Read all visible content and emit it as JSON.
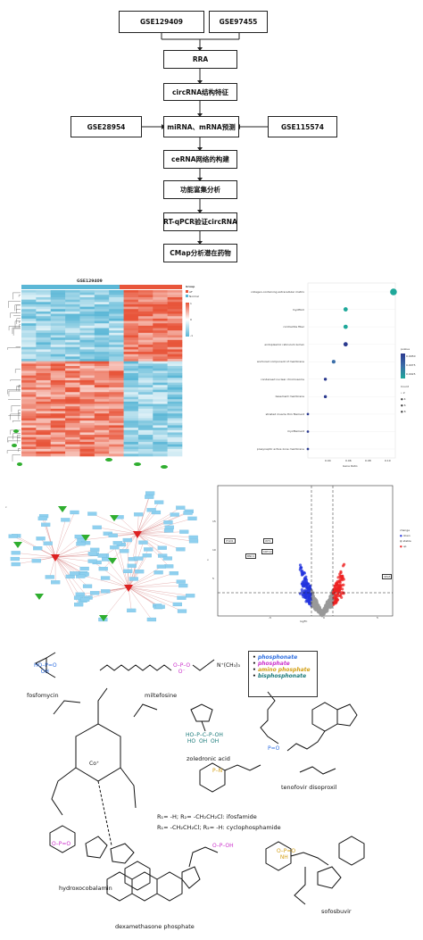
{
  "flowchart": {
    "top_left": "GSE129409",
    "top_right": "GSE97455",
    "rra": "RRA",
    "circ_features": "circRNA结构特征",
    "left_input": "GSE28954",
    "mirna_pred": "miRNA、mRNA预测",
    "right_input": "GSE115574",
    "cerna": "ceRNA网络的构建",
    "enrich": "功能富集分析",
    "qpcr": "RT-qPCR验证circRNA",
    "cmap": "CMap分析潜在药物"
  },
  "heatmap": {
    "title": "GSE129409",
    "legend_title": "Group",
    "legend_items": [
      "AF",
      "Normal"
    ],
    "legend_colors": [
      "#e8553a",
      "#5bb7d6"
    ],
    "scale_labels": [
      "1",
      "0",
      "-1"
    ]
  },
  "dotplot": {
    "xlabel": "Gene Ratio",
    "terms": [
      "collagen-containing extracellular matrix",
      "myofibril",
      "contractile fiber",
      "endoplasmic reticulum lumen",
      "anchored component of membrane",
      "condensed nuclear chromosome",
      "basement membrane",
      "striated muscle thin filament",
      "myofilament",
      "presynaptic active zone membrane"
    ],
    "xticks": [
      "0.04",
      "0.06",
      "0.08",
      "0.10"
    ],
    "pvalue_title": "pvalue",
    "pvalue_ticks": [
      "0.0050",
      "0.0075",
      "0.0025"
    ],
    "count_title": "Count",
    "count_items": [
      "2",
      "4",
      "6",
      "8"
    ]
  },
  "network": {
    "panel_letter": "c"
  },
  "volcano": {
    "panel_letter": "v",
    "xlabel": "logFC",
    "ylabel": "-log10",
    "gene_labels": [
      "ITLN1",
      "WT1",
      "BNC1",
      "KRT19",
      "SELE"
    ],
    "legend_title": "change",
    "legend_items": [
      "down",
      "stable",
      "up"
    ],
    "legend_colors": [
      "#2233dd",
      "#9a9a9a",
      "#ee2222"
    ],
    "yticks": [
      "15",
      "10",
      "5"
    ],
    "xticks": [
      "-5",
      "0",
      "5"
    ]
  },
  "chem": {
    "legend": [
      {
        "text": "phosphonate",
        "color": "#2f6fe0"
      },
      {
        "text": "phosphate",
        "color": "#cc33cc"
      },
      {
        "text": "amino phosphate",
        "color": "#d4a017"
      },
      {
        "text": "bisphosphonate",
        "color": "#1a7a7a"
      }
    ],
    "names": {
      "fosfomycin": "fosfomycin",
      "miltefosine": "miltefosine",
      "zoledronic": "zoledronic acid",
      "tenofovir": "tenofovir disoproxil",
      "ifosfamide_line": "R₁= -H; R₂= -CH₂CH₂Cl: ifosfamide",
      "cyclophos_line": "R₁= -CH₂CH₂Cl; R₂= -H: cyclophosphamide",
      "hydroxocobalamin": "hydroxocobalamin",
      "dexamethasone": "dexamethasone phosphate",
      "sofosbuvir": "sofosbuvir"
    }
  }
}
